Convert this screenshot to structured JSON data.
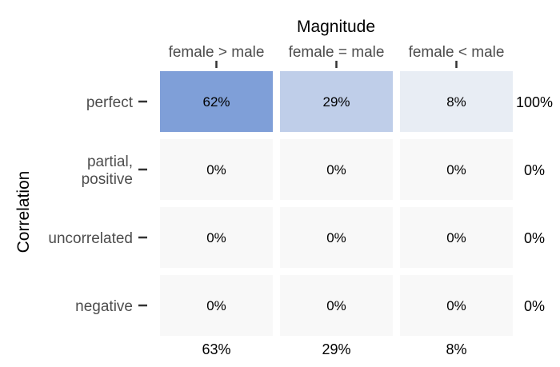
{
  "chart_data": {
    "type": "heatmap",
    "xlabel": "Magnitude",
    "ylabel": "Correlation",
    "columns": [
      "female > male",
      "female = male",
      "female < male"
    ],
    "rows": [
      [
        "perfect"
      ],
      [
        "partial,",
        "positive"
      ],
      [
        "uncorrelated"
      ],
      [
        "negative"
      ]
    ],
    "values": [
      [
        62,
        29,
        8
      ],
      [
        0,
        0,
        0
      ],
      [
        0,
        0,
        0
      ],
      [
        0,
        0,
        0
      ]
    ],
    "cell_labels": [
      [
        "62%",
        "29%",
        "8%"
      ],
      [
        "0%",
        "0%",
        "0%"
      ],
      [
        "0%",
        "0%",
        "0%"
      ],
      [
        "0%",
        "0%",
        "0%"
      ]
    ],
    "row_totals": [
      "100%",
      "0%",
      "0%",
      "0%"
    ],
    "column_totals": [
      "63%",
      "29%",
      "8%"
    ],
    "colors": {
      "high": "#7f9fd8",
      "low": "#f8f8f8",
      "text": "#000000",
      "axis_text": "#4d4d4d"
    }
  }
}
